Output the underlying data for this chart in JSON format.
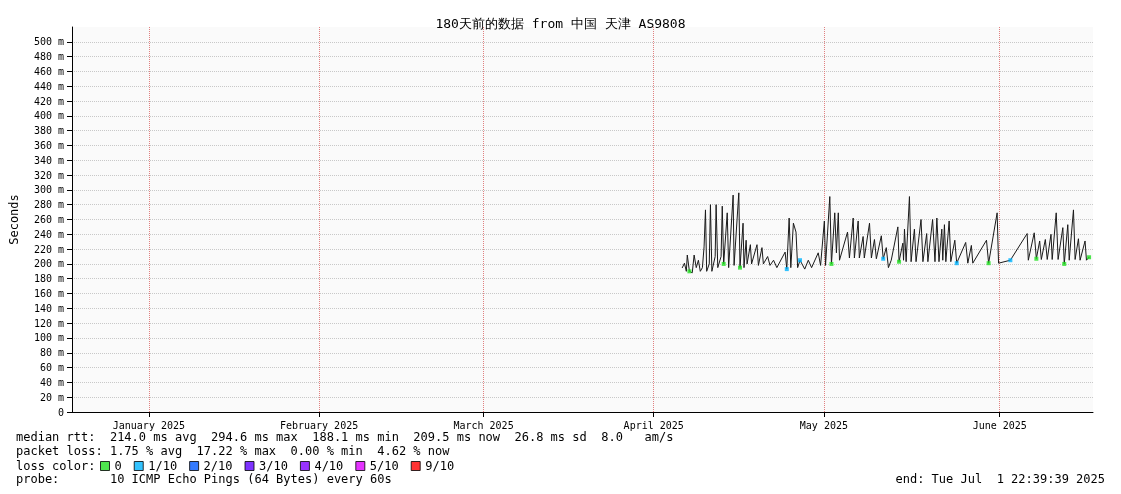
{
  "chart_data": {
    "type": "line",
    "title": "180天前的数据 from 中国 天津 AS9808",
    "ylabel": "Seconds",
    "xlim": [
      "2025-01-02T22:39",
      "2025-07-01T22:39"
    ],
    "xticks": [
      {
        "value": "2025-01-16T12:00",
        "label": "January 2025"
      },
      {
        "value": "2025-02-15T12:00",
        "label": "February 2025"
      },
      {
        "value": "2025-03-16T12:00",
        "label": "March 2025"
      },
      {
        "value": "2025-04-15T12:00",
        "label": "April 2025"
      },
      {
        "value": "2025-05-15T12:00",
        "label": "May 2025"
      },
      {
        "value": "2025-06-15T12:00",
        "label": "June 2025"
      }
    ],
    "ylim": [
      0,
      520
    ],
    "yticks": [
      0,
      {
        "value": 20,
        "label": "20 m"
      },
      {
        "value": 40,
        "label": "40 m"
      },
      {
        "value": 60,
        "label": "60 m"
      },
      {
        "value": 80,
        "label": "80 m"
      },
      {
        "value": 100,
        "label": "100 m"
      },
      {
        "value": 120,
        "label": "120 m"
      },
      {
        "value": 140,
        "label": "140 m"
      },
      {
        "value": 160,
        "label": "160 m"
      },
      {
        "value": 180,
        "label": "180 m"
      },
      {
        "value": 200,
        "label": "200 m"
      },
      {
        "value": 220,
        "label": "220 m"
      },
      {
        "value": 240,
        "label": "240 m"
      },
      {
        "value": 260,
        "label": "260 m"
      },
      {
        "value": 280,
        "label": "280 m"
      },
      {
        "value": 300,
        "label": "300 m"
      },
      {
        "value": 320,
        "label": "320 m"
      },
      {
        "value": 340,
        "label": "340 m"
      },
      {
        "value": 360,
        "label": "360 m"
      },
      {
        "value": 380,
        "label": "380 m"
      },
      {
        "value": 400,
        "label": "400 m"
      },
      {
        "value": 420,
        "label": "420 m"
      },
      {
        "value": 440,
        "label": "440 m"
      },
      {
        "value": 460,
        "label": "460 m"
      },
      {
        "value": 480,
        "label": "480 m"
      },
      {
        "value": 500,
        "label": "500 m"
      }
    ],
    "grid": true,
    "legend": "bottom left",
    "legend_title": "loss color:",
    "annotations": [
      "median rtt:  214.0 ms avg  294.6 ms max  188.1 ms min  209.5 ms now  26.8 ms sd  8.0   am/s",
      "packet loss: 1.75 % avg  17.22 % max  0.00 % min  4.62 % now",
      "probe:       10 ICMP Echo Pings (64 Bytes) every 60s",
      "end: Tue Jul  1 22:39:39 2025"
    ],
    "series": [
      {
        "marker": "none",
        "color": "#1a1a1a",
        "x": [
          "2025-04-20T13:00",
          "2025-04-20T22:00",
          "2025-04-21T06:00",
          "2025-04-21T10:00",
          "2025-04-21T19:00",
          "2025-04-22T07:00",
          "2025-04-22T15:00",
          "2025-04-23T00:00",
          "2025-04-23T09:00",
          "2025-04-23T17:00",
          "2025-04-24T02:00",
          "2025-04-24T09:00",
          "2025-04-24T15:00",
          "2025-04-24T20:00",
          "2025-04-25T07:00",
          "2025-04-25T12:00",
          "2025-04-25T18:00",
          "2025-04-26T08:00",
          "2025-04-26T12:00",
          "2025-04-26T19:00",
          "2025-04-27T09:00",
          "2025-04-27T14:00",
          "2025-04-27T20:00",
          "2025-04-28T11:00",
          "2025-04-28T17:00",
          "2025-04-29T12:00",
          "2025-04-29T16:00",
          "2025-04-30T12:00",
          "2025-04-30T17:00",
          "2025-05-01T06:00",
          "2025-05-01T10:00",
          "2025-05-01T19:00",
          "2025-05-01T23:00",
          "2025-05-02T13:00",
          "2025-05-02T18:00",
          "2025-05-03T17:00",
          "2025-05-03T23:00",
          "2025-05-04T14:00",
          "2025-05-04T20:00",
          "2025-05-05T14:00",
          "2025-05-06T00:00",
          "2025-05-06T15:00",
          "2025-05-07T05:00",
          "2025-05-08T16:00",
          "2025-05-08T23:00",
          "2025-05-09T09:00",
          "2025-05-09T16:00",
          "2025-05-10T03:00",
          "2025-05-10T14:00",
          "2025-05-10T21:00",
          "2025-05-11T07:00",
          "2025-05-12T03:00",
          "2025-05-12T18:00",
          "2025-05-13T08:00",
          "2025-05-14T12:00",
          "2025-05-14T22:00",
          "2025-05-15T14:00",
          "2025-05-15T19:00",
          "2025-05-16T13:00",
          "2025-05-16T20:00",
          "2025-05-17T10:00",
          "2025-05-17T17:00",
          "2025-05-18T01:00",
          "2025-05-18T06:00",
          "2025-05-19T16:00",
          "2025-05-20T00:00",
          "2025-05-20T16:00",
          "2025-05-20T21:00",
          "2025-05-21T13:00",
          "2025-05-21T18:00",
          "2025-05-22T10:00",
          "2025-05-22T15:00",
          "2025-05-23T13:00",
          "2025-05-23T21:00",
          "2025-05-24T10:00",
          "2025-05-24T18:00",
          "2025-05-25T15:00",
          "2025-05-25T23:00",
          "2025-05-26T12:00",
          "2025-05-26T21:00",
          "2025-05-27T09:00",
          "2025-05-28T13:00",
          "2025-05-28T18:00",
          "2025-05-29T10:00",
          "2025-05-29T13:00",
          "2025-05-29T17:00",
          "2025-05-30T00:00",
          "2025-05-30T14:00",
          "2025-05-30T21:00",
          "2025-05-31T11:00",
          "2025-05-31T18:00",
          "2025-06-01T15:00",
          "2025-06-01T23:00",
          "2025-06-02T15:00",
          "2025-06-02T20:00",
          "2025-06-03T16:00",
          "2025-06-04T02:00",
          "2025-06-04T10:00",
          "2025-06-04T19:00",
          "2025-06-05T07:00",
          "2025-06-05T11:00",
          "2025-06-05T18:00",
          "2025-06-06T00:00",
          "2025-06-06T14:00",
          "2025-06-06T21:00",
          "2025-06-07T14:00",
          "2025-06-07T22:00",
          "2025-06-09T12:00",
          "2025-06-09T21:00",
          "2025-06-10T12:00",
          "2025-06-10T18:00",
          "2025-06-13T04:00",
          "2025-06-13T13:00",
          "2025-06-15T01:00",
          "2025-06-15T07:00",
          "2025-06-17T09:00",
          "2025-06-20T08:00",
          "2025-06-20T13:00",
          "2025-06-21T14:00",
          "2025-06-21T23:00",
          "2025-06-22T13:00",
          "2025-06-22T20:00",
          "2025-06-23T13:00",
          "2025-06-23T21:00",
          "2025-06-24T13:00",
          "2025-06-24T18:00",
          "2025-06-25T11:00",
          "2025-06-25T19:00",
          "2025-06-26T15:00",
          "2025-06-26T21:00",
          "2025-06-27T12:00",
          "2025-06-27T18:00",
          "2025-06-28T12:00",
          "2025-06-28T19:00",
          "2025-06-29T09:00",
          "2025-06-29T16:00",
          "2025-06-30T13:00",
          "2025-06-30T19:00",
          "2025-07-01T06:00"
        ],
        "values": [
          195,
          201,
          190,
          212,
          190,
          188,
          212,
          195,
          205,
          190,
          195,
          223,
          273,
          190,
          200,
          280,
          190,
          210,
          280,
          195,
          210,
          278,
          200,
          269,
          195,
          293,
          198,
          296,
          195,
          255,
          195,
          232,
          200,
          226,
          200,
          226,
          198,
          222,
          200,
          210,
          198,
          205,
          195,
          216,
          193,
          262,
          195,
          255,
          243,
          195,
          205,
          193,
          205,
          195,
          215,
          198,
          258,
          198,
          291,
          200,
          269,
          215,
          269,
          205,
          243,
          208,
          262,
          208,
          258,
          208,
          237,
          208,
          255,
          208,
          233,
          207,
          238,
          207,
          222,
          195,
          205,
          250,
          203,
          228,
          205,
          247,
          203,
          291,
          203,
          247,
          203,
          260,
          203,
          241,
          203,
          260,
          203,
          262,
          203,
          247,
          205,
          253,
          203,
          258,
          203,
          232,
          201,
          229,
          201,
          225,
          201,
          232,
          201,
          269,
          201,
          205,
          241,
          205,
          242,
          207,
          231,
          206,
          233,
          206,
          240,
          206,
          269,
          206,
          249,
          200,
          253,
          205,
          273,
          206,
          234,
          205,
          231,
          205,
          209
        ]
      },
      {
        "type": "scatter",
        "marker": "square",
        "name": "0",
        "color": "#22e022",
        "x": [
          "2025-04-21T19:00",
          "2025-04-27T20:00",
          "2025-04-30T17:00",
          "2025-05-16T20:00",
          "2025-05-28T18:00",
          "2025-06-13T13:00",
          "2025-06-21T23:00",
          "2025-06-26T21:00",
          "2025-07-01T06:00"
        ],
        "values": [
          190,
          200,
          195,
          200,
          203,
          201,
          207,
          200,
          209
        ]
      },
      {
        "type": "scatter",
        "marker": "square",
        "name": "1/10",
        "color": "#00b4ff",
        "x": [
          "2025-05-08T23:00",
          "2025-05-11T07:00",
          "2025-05-25T23:00",
          "2025-06-07T22:00",
          "2025-06-17T09:00"
        ],
        "values": [
          193,
          205,
          207,
          201,
          205
        ]
      },
      {
        "type": "scatter",
        "marker": "square",
        "name": "2/10",
        "color": "#0059ff"
      },
      {
        "type": "scatter",
        "marker": "square",
        "name": "3/10",
        "color": "#5e00ff"
      },
      {
        "type": "scatter",
        "marker": "square",
        "name": "4/10",
        "color": "#7e00ff"
      },
      {
        "type": "scatter",
        "marker": "square",
        "name": "5/10",
        "color": "#dd00ff"
      },
      {
        "type": "scatter",
        "marker": "square",
        "name": "9/10",
        "color": "#ff0000"
      }
    ]
  }
}
